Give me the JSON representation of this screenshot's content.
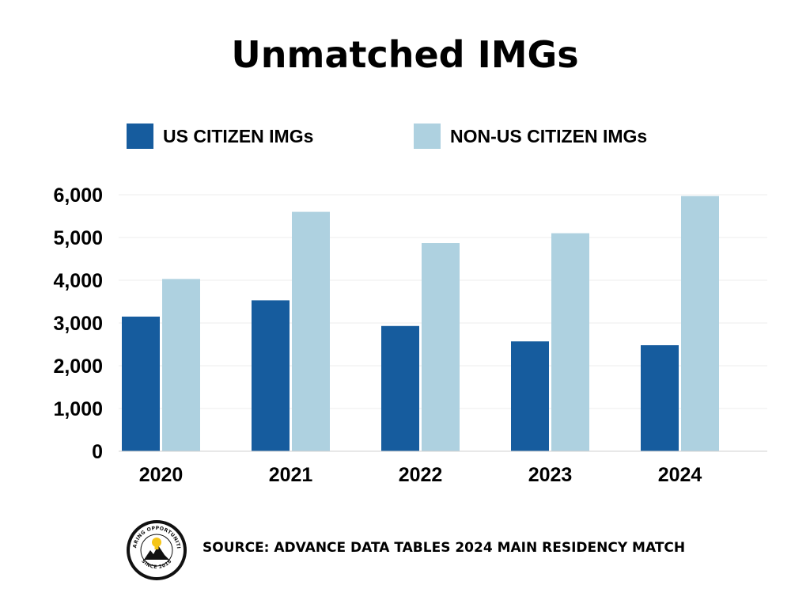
{
  "chart_data": {
    "type": "bar",
    "title": "Unmatched IMGs",
    "categories": [
      "2020",
      "2021",
      "2022",
      "2023",
      "2024"
    ],
    "series": [
      {
        "name": "US CITIZEN IMGs",
        "color": "#165C9E",
        "values": [
          3150,
          3530,
          2930,
          2570,
          2480
        ]
      },
      {
        "name": "NON-US CITIZEN IMGs",
        "color": "#AED1E0",
        "values": [
          4030,
          5600,
          4870,
          5100,
          5970
        ]
      }
    ],
    "yticks": [
      "0",
      "1,000",
      "2,000",
      "3,000",
      "4,000",
      "5,000",
      "6,000"
    ],
    "ylim": [
      0,
      6000
    ],
    "grid": true,
    "legend_position": "top"
  },
  "footer": {
    "source": "SOURCE: ADVANCE DATA TABLES 2024 MAIN RESIDENCY MATCH",
    "logo_top_text": "SHARING OPPORTUNITIES",
    "logo_bottom_text": "SINCE 2018"
  }
}
